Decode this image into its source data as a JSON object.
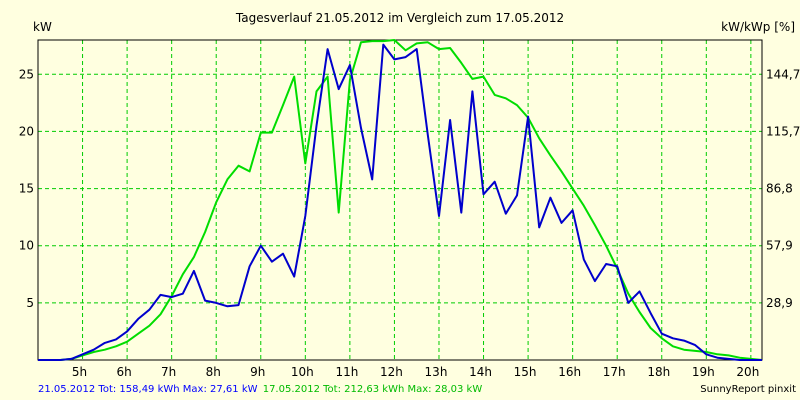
{
  "chart_data": {
    "type": "line",
    "title": "Tagesverlauf 21.05.2012 im Vergleich zum 17.05.2012",
    "ylabel_left": "kW",
    "ylabel_right": "kW/kWp [%]",
    "x_ticks": [
      "5h",
      "6h",
      "7h",
      "8h",
      "9h",
      "10h",
      "11h",
      "12h",
      "13h",
      "14h",
      "15h",
      "16h",
      "17h",
      "18h",
      "19h",
      "20h"
    ],
    "x_tick_values": [
      5,
      6,
      7,
      8,
      9,
      10,
      11,
      12,
      13,
      14,
      15,
      16,
      17,
      18,
      19,
      20
    ],
    "xlim": [
      4,
      20.25
    ],
    "ylim": [
      0,
      28
    ],
    "y_ticks_left": [
      "5",
      "10",
      "15",
      "20",
      "25"
    ],
    "y_tick_values_left": [
      5,
      10,
      15,
      20,
      25
    ],
    "y_ticks_right": [
      "28,9",
      "57,9",
      "86,8",
      "115,7",
      "144,7"
    ],
    "y_tick_values_right": [
      5,
      10,
      15,
      20,
      25
    ],
    "grid": true,
    "series": [
      {
        "name": "21.05.2012",
        "color": "#0000cc",
        "x": [
          4,
          4.5,
          4.75,
          5,
          5.25,
          5.5,
          5.75,
          6,
          6.25,
          6.5,
          6.75,
          7,
          7.25,
          7.5,
          7.75,
          8,
          8.25,
          8.5,
          8.75,
          9,
          9.25,
          9.5,
          9.75,
          10,
          10.25,
          10.5,
          10.75,
          11,
          11.25,
          11.5,
          11.75,
          12,
          12.25,
          12.5,
          12.75,
          13,
          13.25,
          13.5,
          13.75,
          14,
          14.25,
          14.5,
          14.75,
          15,
          15.25,
          15.5,
          15.75,
          16,
          16.25,
          16.5,
          16.75,
          17,
          17.25,
          17.5,
          17.75,
          18,
          18.25,
          18.5,
          18.75,
          19,
          19.25,
          19.5,
          19.75,
          20,
          20.25
        ],
        "values": [
          0,
          0,
          0.1,
          0.5,
          0.9,
          1.5,
          1.8,
          2.5,
          3.6,
          4.4,
          5.7,
          5.5,
          5.8,
          7.8,
          5.2,
          5.0,
          4.7,
          4.8,
          8.2,
          10.0,
          8.6,
          9.3,
          7.3,
          12.6,
          20.5,
          27.2,
          23.7,
          25.8,
          20.3,
          15.8,
          27.6,
          26.3,
          26.5,
          27.2,
          19.7,
          12.6,
          21.0,
          12.9,
          23.5,
          14.5,
          15.6,
          12.8,
          14.4,
          21.3,
          11.6,
          14.2,
          12.0,
          13.1,
          8.8,
          6.9,
          8.4,
          8.2,
          5.0,
          6.0,
          4.1,
          2.3,
          1.9,
          1.7,
          1.3,
          0.5,
          0.2,
          0.1,
          0,
          0,
          0
        ]
      },
      {
        "name": "17.05.2012",
        "color": "#00dd00",
        "x": [
          4,
          4.5,
          4.75,
          5,
          5.25,
          5.5,
          5.75,
          6,
          6.25,
          6.5,
          6.75,
          7,
          7.25,
          7.5,
          7.75,
          8,
          8.25,
          8.5,
          8.75,
          9,
          9.25,
          9.5,
          9.75,
          10,
          10.25,
          10.5,
          10.75,
          11,
          11.25,
          11.5,
          11.75,
          12,
          12.25,
          12.5,
          12.75,
          13,
          13.25,
          13.5,
          13.75,
          14,
          14.25,
          14.5,
          14.75,
          15,
          15.25,
          15.5,
          15.75,
          16,
          16.25,
          16.5,
          16.75,
          17,
          17.25,
          17.5,
          17.75,
          18,
          18.25,
          18.5,
          18.75,
          19,
          19.25,
          19.5,
          19.75,
          20,
          20.25
        ],
        "values": [
          0,
          0,
          0.1,
          0.4,
          0.7,
          0.9,
          1.2,
          1.6,
          2.3,
          3.0,
          4.0,
          5.6,
          7.5,
          9.0,
          11.2,
          13.8,
          15.8,
          17.0,
          16.5,
          19.9,
          19.9,
          22.3,
          24.8,
          17.2,
          23.5,
          24.8,
          12.9,
          24.5,
          27.8,
          27.9,
          27.9,
          28.0,
          27.1,
          27.7,
          27.8,
          27.2,
          27.3,
          26.0,
          24.6,
          24.8,
          23.2,
          22.9,
          22.3,
          21.2,
          19.4,
          17.9,
          16.5,
          15.0,
          13.5,
          11.8,
          10.0,
          8.0,
          5.8,
          4.2,
          2.8,
          1.9,
          1.2,
          0.9,
          0.8,
          0.7,
          0.5,
          0.4,
          0.2,
          0.1,
          0
        ]
      }
    ]
  },
  "footer": {
    "series1_text": "21.05.2012 Tot: 158,49 kWh Max: 27,61 kW",
    "series2_text": "17.05.2012 Tot: 212,63 kWh Max: 28,03 kW",
    "credit": "SunnyReport pinxit"
  },
  "colors": {
    "background": "#ffffe0",
    "plot_border": "#000000",
    "grid": "#00cc00"
  }
}
